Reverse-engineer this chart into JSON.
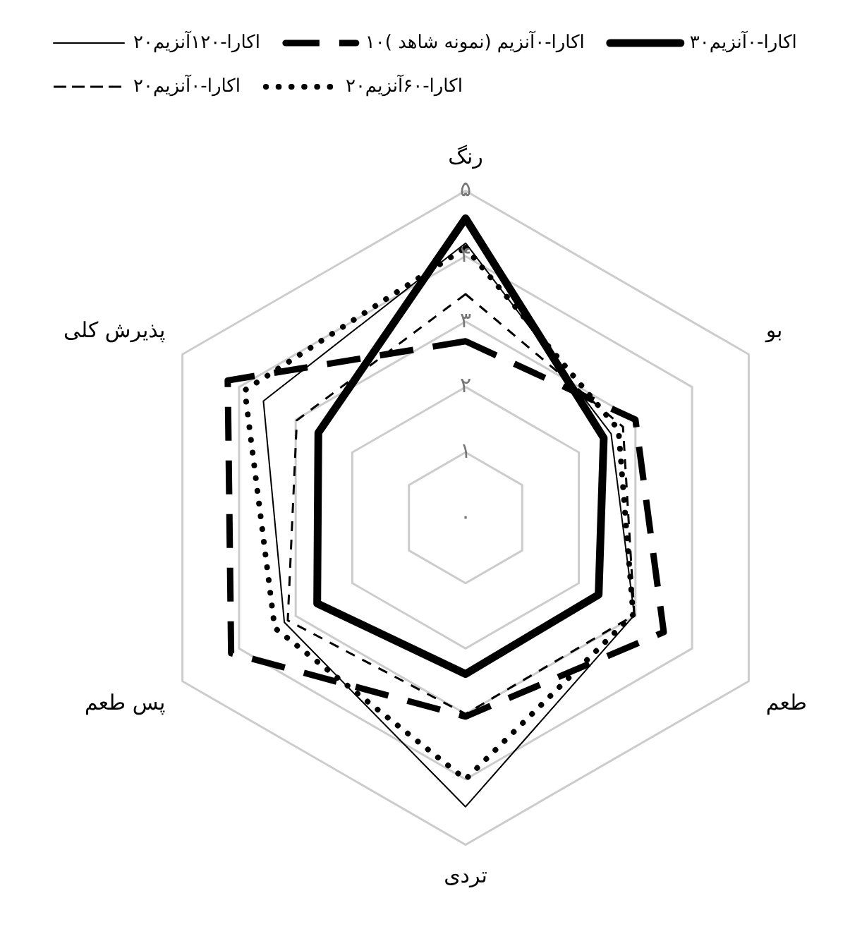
{
  "chart_data": {
    "type": "radar",
    "categories": [
      "رنگ",
      "بو",
      "طعم",
      "تردی",
      "پس طعم",
      "پذیرش کلی"
    ],
    "series": [
      {
        "name": "۲۰اکارا-۱۲۰آنزیم",
        "color": "#000000",
        "line_style": "solid",
        "values": [
          4.2,
          2.57,
          2.98,
          4.42,
          3.2,
          3.57
        ]
      },
      {
        "name": "۱۰اکارا-۰آنزیم (نمونه شاهد )",
        "color": "#000000",
        "line_style": "dashed",
        "values": [
          2.7,
          3.0,
          3.5,
          3.04,
          4.14,
          4.2
        ]
      },
      {
        "name": "۳۰اکارا-۰آنزیم",
        "color": "#000000",
        "line_style": "solid",
        "values": [
          4.58,
          2.44,
          2.35,
          2.39,
          2.62,
          2.6
        ]
      },
      {
        "name": "۲۰اکارا-۰آنزیم",
        "color": "#000000",
        "line_style": "dashed",
        "values": [
          3.42,
          2.78,
          2.98,
          3.0,
          3.14,
          2.98
        ]
      },
      {
        "name": "۲۰اکارا-۶۰آنزیم",
        "color": "#000000",
        "line_style": "dotted",
        "values": [
          4.13,
          2.7,
          2.96,
          4.0,
          3.37,
          3.9
        ]
      }
    ],
    "ylim": [
      0,
      5
    ],
    "yticks": [
      {
        "value": 0,
        "label": "۰"
      },
      {
        "value": 1,
        "label": "۱"
      },
      {
        "value": 2,
        "label": "۲"
      },
      {
        "value": 3,
        "label": "۳"
      },
      {
        "value": 4,
        "label": "۴"
      },
      {
        "value": 5,
        "label": "۵"
      }
    ],
    "grid": true,
    "legend": "top",
    "marker": "none"
  }
}
